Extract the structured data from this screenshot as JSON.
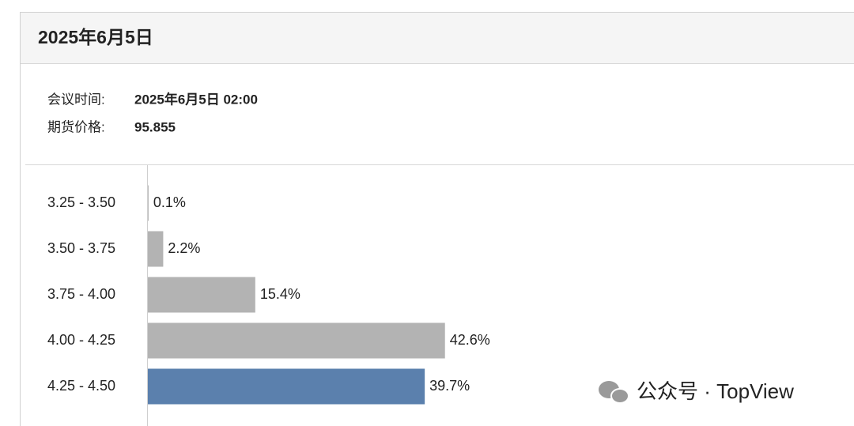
{
  "header": {
    "title": "2025年6月5日"
  },
  "meta": [
    {
      "label": "会议时间:",
      "value": "2025年6月5日 02:00"
    },
    {
      "label": "期货价格:",
      "value": "95.855"
    }
  ],
  "chart_data": {
    "type": "bar",
    "orientation": "horizontal",
    "categories": [
      "3.25 - 3.50",
      "3.50 - 3.75",
      "3.75 - 4.00",
      "4.00 - 4.25",
      "4.25 - 4.50"
    ],
    "values": [
      0.1,
      2.2,
      15.4,
      42.6,
      39.7
    ],
    "value_labels": [
      "0.1%",
      "2.2%",
      "15.4%",
      "42.6%",
      "39.7%"
    ],
    "colors": [
      "#b3b3b3",
      "#b3b3b3",
      "#b3b3b3",
      "#b3b3b3",
      "#5b80ad"
    ]
  },
  "watermark": "公众号 · TopView"
}
